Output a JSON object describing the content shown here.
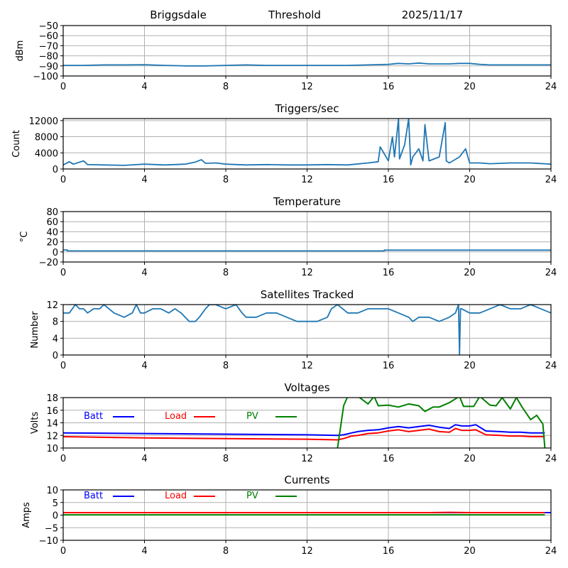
{
  "header": {
    "station": "Briggsdale",
    "mode": "Threshold",
    "date": "2025/11/17"
  },
  "chart_data": [
    {
      "id": "threshold",
      "type": "line",
      "title": "",
      "xlabel": "",
      "ylabel": "dBm",
      "xlim": [
        0,
        24
      ],
      "ylim": [
        -100,
        -50
      ],
      "xticks": [
        "0",
        "4",
        "8",
        "12",
        "16",
        "20",
        "24"
      ],
      "yticks": [
        "−50",
        "−60",
        "−70",
        "−80",
        "−90",
        "−100"
      ],
      "ytick_values": [
        -50,
        -60,
        -70,
        -80,
        -90,
        -100
      ],
      "grid": true,
      "series": [
        {
          "name": "Threshold",
          "color": "#1f77b4",
          "x": [
            0,
            1,
            2,
            3,
            4,
            5,
            6,
            7,
            8,
            9,
            10,
            11,
            12,
            13,
            14,
            15,
            16,
            16.5,
            17,
            17.5,
            18,
            18.5,
            19,
            19.5,
            20,
            20.5,
            21,
            22,
            23,
            24
          ],
          "y": [
            -89.5,
            -89.5,
            -89,
            -89,
            -88.8,
            -89.5,
            -90,
            -90,
            -89.5,
            -89,
            -89.5,
            -89.5,
            -89.5,
            -89.5,
            -89.5,
            -89,
            -88.5,
            -87.5,
            -88,
            -87.2,
            -88,
            -88,
            -88,
            -87.5,
            -87.5,
            -88.5,
            -89,
            -89,
            -89,
            -89
          ]
        }
      ]
    },
    {
      "id": "triggers",
      "type": "line",
      "title": "Triggers/sec",
      "xlabel": "",
      "ylabel": "Count",
      "xlim": [
        0,
        24
      ],
      "ylim": [
        0,
        12500
      ],
      "xticks": [
        "0",
        "4",
        "8",
        "12",
        "16",
        "20",
        "24"
      ],
      "yticks": [
        "0",
        "4000",
        "8000",
        "12000"
      ],
      "ytick_values": [
        0,
        4000,
        8000,
        12000
      ],
      "grid": true,
      "series": [
        {
          "name": "Triggers",
          "color": "#1f77b4",
          "x": [
            0,
            0.3,
            0.5,
            1.0,
            1.2,
            2,
            3,
            4,
            5,
            6,
            6.5,
            6.8,
            7,
            7.5,
            8,
            9,
            10,
            11,
            12,
            13,
            14,
            15,
            15.5,
            15.6,
            16,
            16.2,
            16.3,
            16.5,
            16.55,
            16.8,
            17,
            17.1,
            17.2,
            17.5,
            17.7,
            17.8,
            18,
            18.5,
            18.8,
            18.85,
            19,
            19.5,
            19.8,
            20,
            20.5,
            21,
            22,
            23,
            24
          ],
          "y": [
            1000,
            1800,
            1200,
            2000,
            1100,
            1000,
            900,
            1200,
            1000,
            1200,
            1700,
            2300,
            1400,
            1500,
            1200,
            1000,
            1100,
            1000,
            1000,
            1100,
            1000,
            1500,
            1800,
            5500,
            2000,
            8000,
            3000,
            12500,
            2500,
            6000,
            12500,
            1000,
            3000,
            5000,
            2000,
            11000,
            2000,
            3000,
            11500,
            2000,
            1500,
            3000,
            5000,
            1500,
            1500,
            1300,
            1500,
            1500,
            1200
          ]
        }
      ]
    },
    {
      "id": "temperature",
      "type": "line",
      "title": "Temperature",
      "xlabel": "",
      "ylabel": "°C",
      "xlim": [
        0,
        24
      ],
      "ylim": [
        -20,
        80
      ],
      "xticks": [
        "0",
        "4",
        "8",
        "12",
        "16",
        "20",
        "24"
      ],
      "yticks": [
        "80",
        "60",
        "40",
        "20",
        "0",
        "−20"
      ],
      "ytick_values": [
        80,
        60,
        40,
        20,
        0,
        -20
      ],
      "grid": true,
      "series": [
        {
          "name": "Temperature",
          "color": "#1f77b4",
          "x": [
            0,
            0.2,
            0.2,
            15.8,
            15.8,
            24
          ],
          "y": [
            4,
            4,
            2,
            2,
            3.5,
            3.5
          ]
        }
      ]
    },
    {
      "id": "satellites",
      "type": "line",
      "title": "Satellites Tracked",
      "xlabel": "",
      "ylabel": "Number",
      "xlim": [
        0,
        24
      ],
      "ylim": [
        0,
        12
      ],
      "xticks": [
        "0",
        "4",
        "8",
        "12",
        "16",
        "20",
        "24"
      ],
      "yticks": [
        "0",
        "4",
        "8",
        "12"
      ],
      "ytick_values": [
        0,
        4,
        8,
        12
      ],
      "grid": true,
      "series": [
        {
          "name": "Satellites",
          "color": "#1f77b4",
          "x": [
            0,
            0.3,
            0.45,
            0.6,
            0.8,
            1.0,
            1.2,
            1.5,
            1.8,
            2.0,
            2.5,
            3.0,
            3.4,
            3.6,
            3.8,
            4.0,
            4.4,
            4.8,
            5.2,
            5.5,
            5.8,
            6.0,
            6.2,
            6.5,
            6.7,
            7.0,
            7.2,
            7.5,
            8.0,
            8.5,
            8.8,
            9.0,
            9.5,
            10.0,
            10.5,
            11.0,
            11.5,
            12.0,
            12.5,
            13.0,
            13.2,
            13.5,
            14.0,
            14.5,
            15.0,
            15.5,
            16.0,
            16.5,
            17.0,
            17.2,
            17.5,
            18.0,
            18.5,
            19.0,
            19.3,
            19.45,
            19.5,
            19.55,
            19.6,
            20.0,
            20.5,
            21.0,
            21.5,
            22.0,
            22.5,
            23.0,
            23.5,
            24.0
          ],
          "y": [
            10,
            10,
            11,
            12,
            11,
            11,
            10,
            11,
            11,
            12,
            10,
            9,
            10,
            12,
            10,
            10,
            11,
            11,
            10,
            11,
            10,
            9,
            8,
            8,
            9,
            11,
            12,
            12,
            11,
            12,
            10,
            9,
            9,
            10,
            10,
            9,
            8,
            8,
            8,
            9,
            11,
            12,
            10,
            10,
            11,
            11,
            11,
            10,
            9,
            8,
            9,
            9,
            8,
            9,
            10,
            12,
            0,
            11,
            11,
            10,
            10,
            11,
            12,
            11,
            11,
            12,
            11,
            10
          ]
        }
      ]
    },
    {
      "id": "voltages",
      "type": "line",
      "title": "Voltages",
      "xlabel": "",
      "ylabel": "Volts",
      "xlim": [
        0,
        24
      ],
      "ylim": [
        10,
        18
      ],
      "xticks": [
        "0",
        "4",
        "8",
        "12",
        "16",
        "20",
        "24"
      ],
      "yticks": [
        "10",
        "12",
        "14",
        "16",
        "18"
      ],
      "ytick_values": [
        10,
        12,
        14,
        16,
        18
      ],
      "grid": true,
      "legend": "top-left (inline)",
      "series": [
        {
          "name": "Batt",
          "color": "#0000ff",
          "x": [
            0,
            4,
            8,
            12,
            13.5,
            13.8,
            14.2,
            14.5,
            15,
            15.5,
            16,
            16.5,
            17,
            17.5,
            18,
            18.5,
            19,
            19.3,
            19.6,
            20,
            20.3,
            20.8,
            21.5,
            22,
            22.5,
            23,
            23.7
          ],
          "y": [
            12.4,
            12.3,
            12.2,
            12.1,
            12.0,
            12.1,
            12.4,
            12.6,
            12.8,
            12.9,
            13.2,
            13.4,
            13.2,
            13.4,
            13.6,
            13.3,
            13.1,
            13.7,
            13.5,
            13.5,
            13.7,
            12.7,
            12.6,
            12.5,
            12.5,
            12.4,
            12.4
          ]
        },
        {
          "name": "Load",
          "color": "#ff0000",
          "x": [
            0,
            4,
            8,
            12,
            13.5,
            13.8,
            14.2,
            14.5,
            15,
            15.5,
            16,
            16.5,
            17,
            17.5,
            18,
            18.5,
            19,
            19.3,
            19.6,
            20,
            20.3,
            20.8,
            21.5,
            22,
            22.5,
            23,
            23.7
          ],
          "y": [
            11.8,
            11.6,
            11.5,
            11.4,
            11.3,
            11.5,
            11.9,
            12.0,
            12.3,
            12.4,
            12.7,
            12.9,
            12.6,
            12.8,
            13.0,
            12.6,
            12.5,
            13.1,
            12.8,
            12.8,
            12.9,
            12.1,
            12.0,
            11.9,
            11.9,
            11.8,
            11.8
          ]
        },
        {
          "name": "PV",
          "color": "#008000",
          "x": [
            13.5,
            13.8,
            14.0,
            14.5,
            15.0,
            15.3,
            15.5,
            16.0,
            16.5,
            17.0,
            17.5,
            17.8,
            18.2,
            18.5,
            19.0,
            19.5,
            19.7,
            20.2,
            20.5,
            21.0,
            21.3,
            21.6,
            22.0,
            22.3,
            22.6,
            23.0,
            23.3,
            23.6,
            23.7
          ],
          "y": [
            10,
            16.7,
            18.2,
            18.2,
            17.0,
            18.2,
            16.7,
            16.8,
            16.5,
            17.0,
            16.7,
            15.8,
            16.5,
            16.5,
            17.2,
            18.2,
            16.6,
            16.6,
            18.2,
            16.8,
            16.7,
            18.0,
            16.2,
            18.0,
            16.4,
            14.5,
            15.2,
            13.8,
            10.0
          ]
        }
      ]
    },
    {
      "id": "currents",
      "type": "line",
      "title": "Currents",
      "xlabel": "",
      "ylabel": "Amps",
      "xlim": [
        0,
        24
      ],
      "ylim": [
        -10,
        10
      ],
      "xticks": [
        "0",
        "4",
        "8",
        "12",
        "16",
        "20",
        "24"
      ],
      "yticks": [
        "10",
        "5",
        "0",
        "−5",
        "−10"
      ],
      "ytick_values": [
        10,
        5,
        0,
        -5,
        -10
      ],
      "grid": true,
      "legend": "top-left (inline)",
      "series": [
        {
          "name": "Batt",
          "color": "#0000ff",
          "x": [
            0,
            24
          ],
          "y": [
            1.0,
            1.0
          ]
        },
        {
          "name": "Load",
          "color": "#ff0000",
          "x": [
            0,
            6,
            12,
            18,
            19,
            20,
            23.7
          ],
          "y": [
            1.0,
            1.0,
            1.0,
            1.0,
            1.1,
            1.0,
            1.0
          ]
        },
        {
          "name": "PV",
          "color": "#008000",
          "x": [
            0,
            23.7
          ],
          "y": [
            0.1,
            0.1
          ]
        }
      ]
    }
  ]
}
